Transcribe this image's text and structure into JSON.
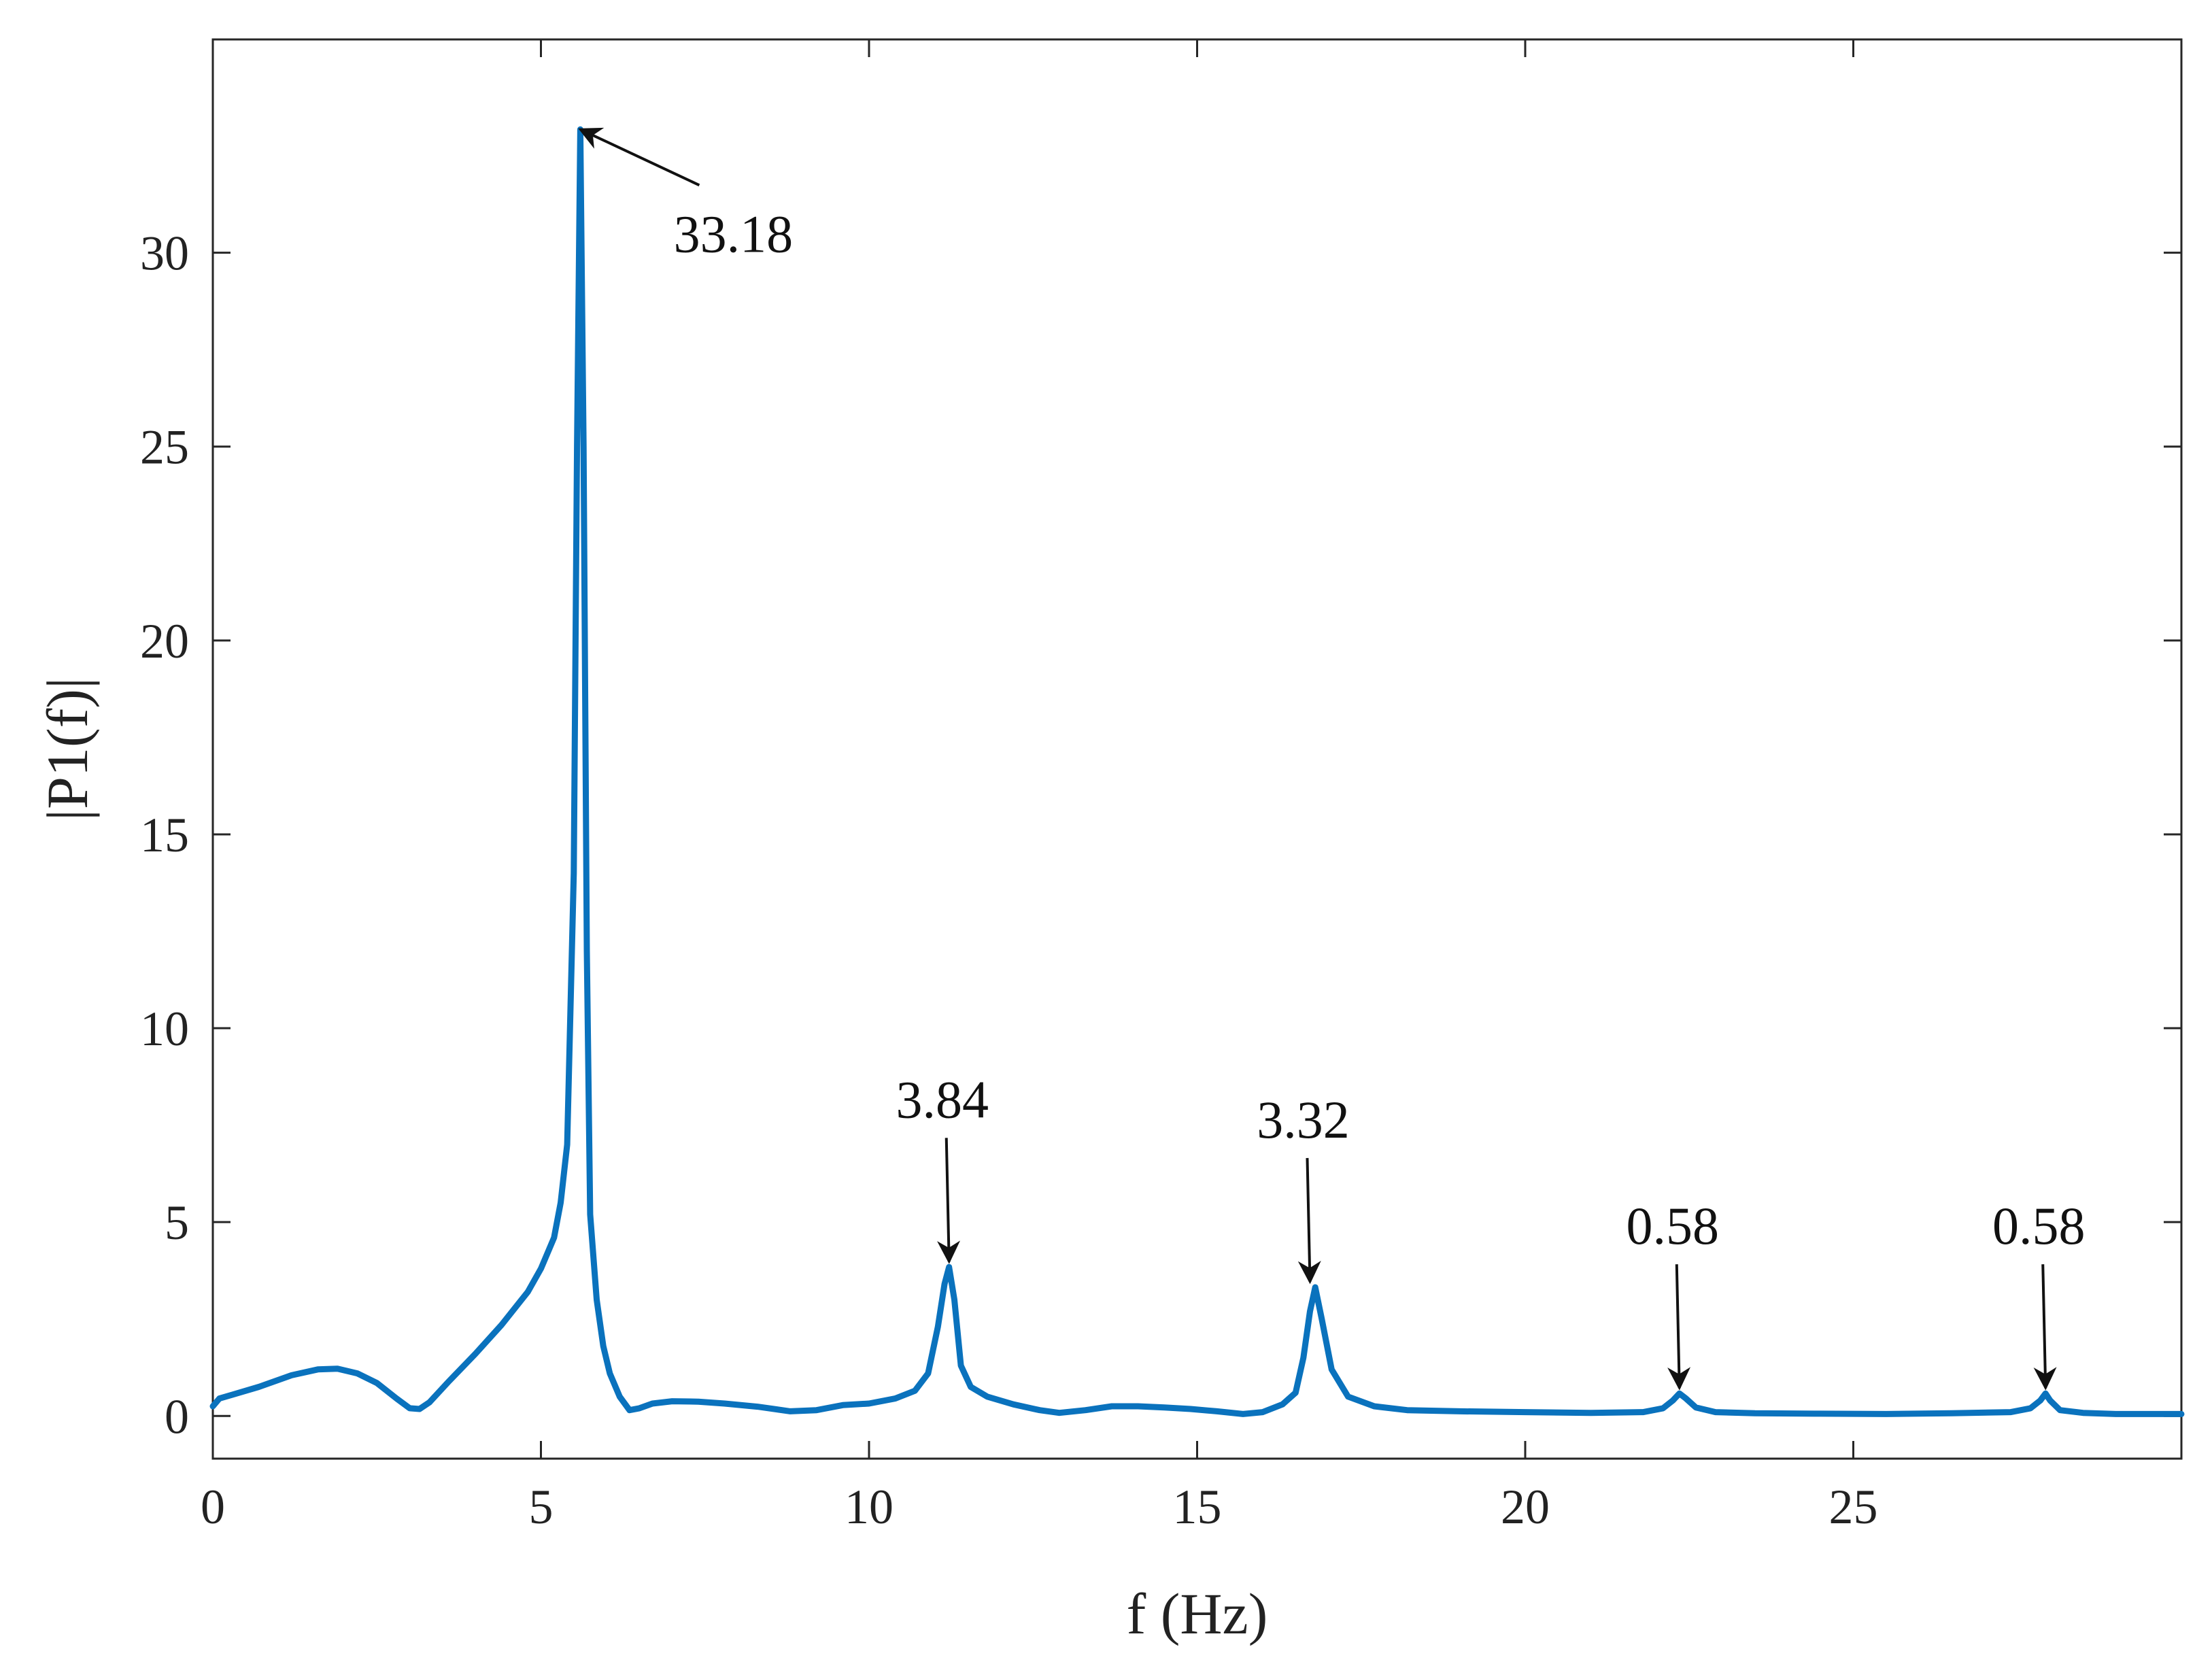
{
  "chart_data": {
    "type": "line",
    "title": "",
    "xlabel": "f (Hz)",
    "ylabel": "|P1(f)|",
    "xlim": [
      0,
      30
    ],
    "ylim": [
      -1.1,
      35.5
    ],
    "xticks": [
      0,
      5,
      10,
      15,
      20,
      25
    ],
    "yticks": [
      0,
      5,
      10,
      15,
      20,
      25,
      30
    ],
    "grid": false,
    "legend": "none",
    "line_color": "#0a72bd",
    "series": [
      {
        "x": [
          0,
          0.1,
          0.3,
          0.7,
          1.2,
          1.6,
          1.9,
          2.2,
          2.5,
          2.8,
          3.0,
          3.15,
          3.3,
          3.6,
          4.0,
          4.4,
          4.8,
          5.0,
          5.2,
          5.3,
          5.4,
          5.5,
          5.55,
          5.6,
          5.65,
          5.7,
          5.75,
          5.85,
          5.95,
          6.05,
          6.2,
          6.35,
          6.5,
          6.7,
          7.0,
          7.4,
          7.8,
          8.3,
          8.8,
          9.2,
          9.6,
          10.0,
          10.4,
          10.7,
          10.9,
          11.05,
          11.15,
          11.22,
          11.3,
          11.4,
          11.55,
          11.8,
          12.2,
          12.6,
          12.9,
          13.3,
          13.7,
          14.1,
          14.5,
          14.9,
          15.3,
          15.7,
          16.0,
          16.3,
          16.5,
          16.62,
          16.72,
          16.8,
          16.9,
          17.05,
          17.3,
          17.7,
          18.2,
          19.0,
          20.0,
          21.0,
          21.8,
          22.1,
          22.25,
          22.35,
          22.45,
          22.6,
          22.9,
          23.5,
          24.5,
          25.5,
          26.5,
          27.4,
          27.7,
          27.85,
          27.93,
          28.0,
          28.15,
          28.5,
          29.0,
          30.0
        ],
        "y": [
          0.25,
          0.45,
          0.55,
          0.75,
          1.05,
          1.2,
          1.22,
          1.1,
          0.85,
          0.45,
          0.2,
          0.18,
          0.35,
          0.9,
          1.6,
          2.35,
          3.2,
          3.8,
          4.6,
          5.5,
          7.0,
          14.0,
          25.0,
          33.18,
          25.0,
          12.0,
          5.2,
          3.0,
          1.8,
          1.1,
          0.5,
          0.15,
          0.2,
          0.32,
          0.38,
          0.37,
          0.32,
          0.24,
          0.12,
          0.15,
          0.28,
          0.32,
          0.45,
          0.65,
          1.1,
          2.3,
          3.4,
          3.84,
          3.0,
          1.3,
          0.75,
          0.5,
          0.3,
          0.15,
          0.08,
          0.15,
          0.25,
          0.25,
          0.22,
          0.18,
          0.12,
          0.05,
          0.1,
          0.3,
          0.6,
          1.5,
          2.7,
          3.32,
          2.5,
          1.2,
          0.5,
          0.25,
          0.15,
          0.12,
          0.1,
          0.08,
          0.1,
          0.2,
          0.4,
          0.58,
          0.45,
          0.22,
          0.1,
          0.07,
          0.06,
          0.05,
          0.07,
          0.1,
          0.2,
          0.4,
          0.58,
          0.4,
          0.15,
          0.08,
          0.05,
          0.05
        ]
      }
    ],
    "annotations": [
      {
        "text": "33.18",
        "x": 5.6,
        "y": 33.18
      },
      {
        "text": "3.84",
        "x": 11.22,
        "y": 3.84
      },
      {
        "text": "3.32",
        "x": 16.72,
        "y": 3.32
      },
      {
        "text": "0.58",
        "x": 22.35,
        "y": 0.58
      },
      {
        "text": "0.58",
        "x": 27.93,
        "y": 0.58
      }
    ]
  }
}
